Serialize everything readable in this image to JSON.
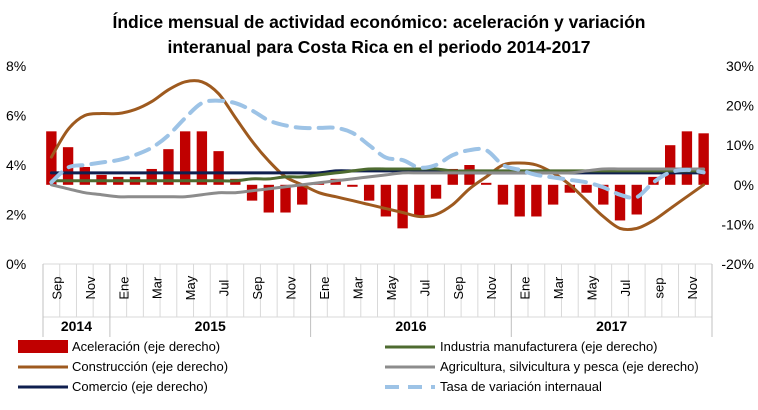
{
  "chart_data": {
    "type": "bar+line",
    "title_line1": "Índice mensual de actividad económico: aceleración y variación",
    "title_line2": "interanual para Costa Rica en el periodo 2014-2017",
    "y_left_ticks": [
      "8%",
      "6%",
      "4%",
      "2%",
      "0%"
    ],
    "y_left_range": [
      0,
      8
    ],
    "y_right_ticks": [
      "30%",
      "20%",
      "10%",
      "0%",
      "-10%",
      "-20%"
    ],
    "y_right_range": [
      -20,
      30
    ],
    "month_labels": [
      "Sep",
      "Nov",
      "Ene",
      "Mar",
      "May",
      "Jul",
      "Sep",
      "Nov",
      "Ene",
      "Mar",
      "May",
      "Jul",
      "Sep",
      "Nov",
      "Ene",
      "Mar",
      "May",
      "Jul",
      "sep",
      "Nov"
    ],
    "years": [
      {
        "label": "2014",
        "months": 4
      },
      {
        "label": "2015",
        "months": 12
      },
      {
        "label": "2016",
        "months": 12
      },
      {
        "label": "2017",
        "months": 12
      }
    ],
    "months_count": 40,
    "series": [
      {
        "name": "Aceleración (eje derecho)",
        "type": "bar",
        "axis": "right",
        "color": "#C00000",
        "values": [
          13.5,
          9.5,
          4.5,
          2.5,
          2,
          2,
          4,
          9,
          13.5,
          13.5,
          8.5,
          1.5,
          -4,
          -7,
          -7,
          -5,
          0.5,
          1.5,
          -0.5,
          -4,
          -8,
          -11,
          -8,
          -3.5,
          4,
          5,
          0.5,
          -5,
          -8,
          -8,
          -5,
          -2,
          -2,
          -5,
          -9,
          -7.5,
          2,
          10,
          13.5,
          13
        ]
      },
      {
        "name": "Construcción (eje derecho)",
        "type": "line",
        "axis": "right",
        "color": "#9E5A1F",
        "values": [
          7,
          14,
          17.5,
          18,
          18,
          19,
          21,
          24,
          26,
          26,
          23,
          17,
          11,
          6,
          2,
          0,
          -2,
          -3,
          -4,
          -5,
          -6,
          -7,
          -8,
          -7.5,
          -5,
          -1,
          2,
          5,
          5.5,
          5,
          3,
          0,
          -4,
          -8,
          -11,
          -11,
          -9,
          -6,
          -3,
          0
        ]
      },
      {
        "name": "Comercio (eje derecho)",
        "type": "line",
        "axis": "right",
        "color": "#0F1F4F",
        "values": [
          3,
          3,
          3,
          3,
          3,
          3,
          3,
          3,
          3,
          3,
          3,
          3,
          3,
          3,
          3,
          3,
          3,
          3.5,
          3.5,
          3.5,
          3.5,
          3.5,
          3.5,
          3.5,
          3,
          3,
          3,
          3,
          3,
          3,
          3,
          3,
          3,
          3,
          3,
          3,
          3,
          3,
          3,
          3
        ]
      },
      {
        "name": "Industria manufacturera (eje derecho)",
        "type": "line",
        "axis": "right",
        "color": "#4E6B30",
        "values": [
          1,
          1,
          1,
          1,
          1,
          1,
          1,
          1,
          1,
          1,
          1,
          1,
          1.5,
          1.5,
          2,
          2,
          2.5,
          3,
          3.5,
          4,
          4,
          4,
          4,
          4,
          3.5,
          3.5,
          3.5,
          3.5,
          3.5,
          3.5,
          3.5,
          3.5,
          3.5,
          3.5,
          3.5,
          3.5,
          3.5,
          3.5,
          3.5,
          3.5
        ]
      },
      {
        "name": "Agricultura, silvicultura y pesca (eje derecho)",
        "type": "line",
        "axis": "right",
        "color": "#8C8C8C",
        "values": [
          0,
          -1,
          -2,
          -2.5,
          -3,
          -3,
          -3,
          -3,
          -3,
          -2.5,
          -2,
          -2,
          -1.5,
          -1,
          -0.5,
          0,
          0.5,
          1,
          1.5,
          2,
          2.5,
          3,
          3,
          3,
          3,
          3,
          3,
          3,
          3,
          3,
          3,
          3,
          3.5,
          4,
          4,
          4,
          4,
          4,
          4,
          4
        ]
      },
      {
        "name": "Tasa de variación internaual",
        "type": "line",
        "axis": "left",
        "dashed": true,
        "color": "#9DC3E6",
        "values": [
          3.3,
          3.9,
          4.0,
          4.1,
          4.2,
          4.4,
          4.7,
          5.2,
          5.9,
          6.5,
          6.6,
          6.5,
          6.2,
          5.8,
          5.6,
          5.5,
          5.5,
          5.5,
          5.3,
          4.8,
          4.3,
          4.2,
          3.9,
          4.0,
          4.4,
          4.6,
          4.6,
          4.0,
          3.8,
          3.6,
          3.5,
          3.4,
          3.3,
          3.1,
          2.8,
          2.7,
          3.3,
          3.7,
          3.8,
          3.7
        ]
      }
    ],
    "legend": {
      "left": [
        "Aceleración (eje derecho)",
        "Construcción (eje derecho)",
        "Comercio (eje derecho)"
      ],
      "right": [
        "Industria manufacturera (eje derecho)",
        "Agricultura, silvicultura y pesca (eje derecho)",
        "Tasa de variación internaual"
      ]
    }
  }
}
